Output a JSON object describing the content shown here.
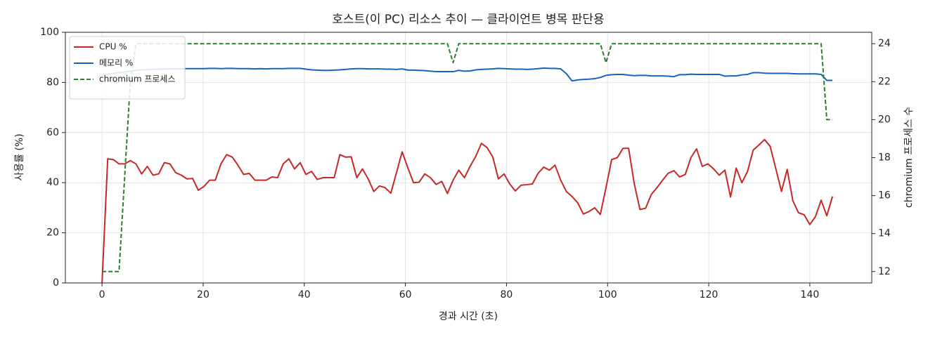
{
  "chart_data": {
    "type": "line",
    "title": "호스트(이 PC) 리소스 추이 — 클라이언트 병목 판단용",
    "x_label": "경과 시간 (초)",
    "y_label": "사용률 (%)",
    "y2_label": "chromium 프로세스 수",
    "x": [
      0,
      1.12,
      2.24,
      3.36,
      4.48,
      5.6,
      6.72,
      7.84,
      8.96,
      10.08,
      11.2,
      12.32,
      13.44,
      14.56,
      15.68,
      16.8,
      17.92,
      19.04,
      20.16,
      21.28,
      22.4,
      23.52,
      24.64,
      25.76,
      26.88,
      28,
      29.12,
      30.24,
      31.36,
      32.48,
      33.6,
      34.72,
      35.84,
      36.96,
      38.08,
      39.2,
      40.32,
      41.44,
      42.56,
      43.68,
      44.8,
      45.92,
      47.04,
      48.16,
      49.28,
      50.4,
      51.52,
      52.64,
      53.76,
      54.88,
      56,
      57.12,
      58.24,
      59.36,
      60.48,
      61.6,
      62.72,
      63.84,
      64.96,
      66.08,
      67.2,
      68.32,
      69.44,
      70.56,
      71.68,
      72.8,
      73.92,
      75.04,
      76.16,
      77.28,
      78.4,
      79.52,
      80.64,
      81.76,
      82.88,
      84,
      85.12,
      86.24,
      87.36,
      88.48,
      89.6,
      90.72,
      91.84,
      92.96,
      94.08,
      95.2,
      96.32,
      97.44,
      98.56,
      99.68,
      100.8,
      101.92,
      103.04,
      104.16,
      105.28,
      106.4,
      107.52,
      108.64,
      109.76,
      110.88,
      112,
      113.12,
      114.24,
      115.36,
      116.48,
      117.6,
      118.72,
      119.84,
      120.96,
      122.08,
      123.2,
      124.32,
      125.44,
      126.56,
      127.68,
      128.8,
      129.92,
      131.04,
      132.16,
      133.28,
      134.4,
      135.52,
      136.64,
      137.76,
      138.88,
      140,
      141.12,
      142.24,
      143.36,
      144.48
    ],
    "series": [
      {
        "name": "CPU %",
        "color": "#c62828",
        "linestyle": "solid",
        "values": [
          0,
          49.5,
          49.2,
          47.5,
          47.5,
          48.8,
          47.5,
          43.5,
          46.5,
          43,
          43.5,
          48,
          47.5,
          44,
          43,
          41.5,
          41.7,
          37,
          38.5,
          41,
          41,
          47.5,
          51.2,
          50.2,
          47,
          43.3,
          43.7,
          41,
          41,
          41,
          42.3,
          42,
          47.5,
          49.5,
          45.5,
          48,
          43.3,
          44.5,
          41.3,
          42,
          42,
          42,
          51.2,
          50.2,
          50.3,
          42,
          45.5,
          41.5,
          36.5,
          38.7,
          38,
          35.8,
          44,
          52.3,
          46,
          40,
          40.2,
          43.5,
          42,
          39.3,
          40.5,
          35.7,
          41,
          45,
          42,
          46.5,
          50.5,
          55.7,
          54,
          50.3,
          41.5,
          43.5,
          39.5,
          36.7,
          39,
          39.2,
          39.5,
          43.7,
          46.2,
          45,
          47,
          41,
          36.5,
          34.5,
          32,
          27.5,
          28.5,
          30,
          27.3,
          38,
          49.2,
          50,
          53.7,
          53.7,
          39.5,
          29.3,
          29.8,
          35.3,
          38,
          41,
          43.8,
          44.8,
          42.3,
          43.3,
          50,
          53.5,
          46.5,
          47.5,
          45.5,
          43,
          45,
          34.3,
          45.8,
          40,
          44.5,
          53,
          55,
          57.2,
          54.5,
          45.5,
          36.5,
          45.3,
          32.8,
          28,
          27.2,
          23.3,
          26.5,
          33,
          26.8,
          34.5
        ]
      },
      {
        "name": "메모리 %",
        "color": "#1565c0",
        "linestyle": "solid",
        "values": [
          83,
          83.3,
          83.6,
          83.9,
          84.2,
          84.5,
          84.8,
          85,
          85.1,
          85.2,
          85.3,
          85.3,
          85.4,
          85.4,
          85.4,
          85.5,
          85.5,
          85.5,
          85.5,
          85.6,
          85.6,
          85.5,
          85.6,
          85.6,
          85.5,
          85.5,
          85.5,
          85.4,
          85.5,
          85.4,
          85.5,
          85.5,
          85.5,
          85.6,
          85.6,
          85.6,
          85.3,
          85,
          84.9,
          84.8,
          84.8,
          84.9,
          85,
          85.2,
          85.4,
          85.5,
          85.5,
          85.4,
          85.4,
          85.4,
          85.3,
          85.3,
          85.2,
          85.4,
          84.9,
          84.9,
          84.8,
          84.7,
          84.5,
          84.3,
          84.3,
          84.3,
          84.3,
          84.8,
          84.5,
          84.6,
          85,
          85.2,
          85.3,
          85.4,
          85.6,
          85.5,
          85.4,
          85.3,
          85.3,
          85.2,
          85.3,
          85.5,
          85.7,
          85.6,
          85.6,
          85.4,
          83.5,
          80.6,
          81,
          81.2,
          81.3,
          81.5,
          82,
          82.8,
          83.1,
          83.2,
          83.2,
          82.9,
          82.7,
          82.8,
          82.8,
          82.6,
          82.6,
          82.6,
          82.5,
          82.3,
          83.1,
          83.1,
          83.3,
          83.2,
          83.2,
          83.2,
          83.2,
          83.2,
          82.5,
          82.6,
          82.6,
          83,
          83.2,
          83.9,
          83.9,
          83.7,
          83.6,
          83.6,
          83.6,
          83.6,
          83.5,
          83.4,
          83.4,
          83.4,
          83.4,
          83.2,
          80.8,
          80.8
        ]
      },
      {
        "name": "chromium 프로세스",
        "color": "#2e7d32",
        "linestyle": "dashed",
        "axis": "y2",
        "values": [
          12,
          12,
          12,
          12,
          17,
          22,
          24,
          24,
          24,
          24,
          24,
          24,
          24,
          24,
          24,
          24,
          24,
          24,
          24,
          24,
          24,
          24,
          24,
          24,
          24,
          24,
          24,
          24,
          24,
          24,
          24,
          24,
          24,
          24,
          24,
          24,
          24,
          24,
          24,
          24,
          24,
          24,
          24,
          24,
          24,
          24,
          24,
          24,
          24,
          24,
          24,
          24,
          24,
          24,
          24,
          24,
          24,
          24,
          24,
          24,
          24,
          24,
          23,
          24,
          24,
          24,
          24,
          24,
          24,
          24,
          24,
          24,
          24,
          24,
          24,
          24,
          24,
          24,
          24,
          24,
          24,
          24,
          24,
          24,
          24,
          24,
          24,
          24,
          24,
          23,
          24,
          24,
          24,
          24,
          24,
          24,
          24,
          24,
          24,
          24,
          24,
          24,
          24,
          24,
          24,
          24,
          24,
          24,
          24,
          24,
          24,
          24,
          24,
          24,
          24,
          24,
          24,
          24,
          24,
          24,
          24,
          24,
          24,
          24,
          24,
          24,
          24,
          24,
          20,
          20
        ]
      }
    ],
    "xlim": [
      -7.25,
      152.25
    ],
    "xticks": [
      0,
      20,
      40,
      60,
      80,
      100,
      120,
      140
    ],
    "ylim": [
      0,
      100
    ],
    "yticks": [
      0,
      20,
      40,
      60,
      80,
      100
    ],
    "y2lim": [
      11.4,
      24.6
    ],
    "y2ticks": [
      12,
      14,
      16,
      18,
      20,
      22,
      24
    ],
    "grid": true,
    "legend": "upper-left"
  }
}
